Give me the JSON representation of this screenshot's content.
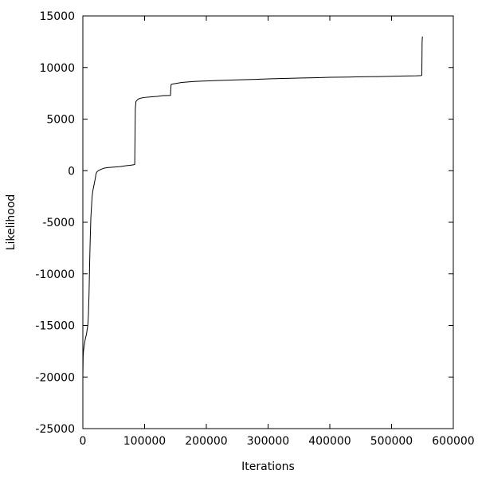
{
  "chart_data": {
    "type": "line",
    "title": "",
    "xlabel": "Iterations",
    "ylabel": "Likelihood",
    "xlim": [
      0,
      600000
    ],
    "ylim": [
      -25000,
      15000
    ],
    "xticks": [
      0,
      100000,
      200000,
      300000,
      400000,
      500000,
      600000
    ],
    "yticks": [
      -25000,
      -20000,
      -15000,
      -10000,
      -5000,
      0,
      5000,
      10000,
      15000
    ],
    "grid": false,
    "legend": "none",
    "series": [
      {
        "color": "#000000",
        "x": [
          0,
          500,
          1000,
          2000,
          4000,
          6000,
          8000,
          9000,
          10000,
          11000,
          12000,
          13000,
          14000,
          15000,
          16000,
          17000,
          18000,
          19000,
          20000,
          21000,
          22000,
          23000,
          25000,
          30000,
          35000,
          40000,
          50000,
          60000,
          70000,
          80000,
          84000,
          84500,
          85000,
          86000,
          88000,
          90000,
          95000,
          100000,
          110000,
          120000,
          130000,
          142000,
          142500,
          143000,
          145000,
          150000,
          160000,
          170000,
          180000,
          200000,
          220000,
          250000,
          280000,
          300000,
          330000,
          350000,
          380000,
          400000,
          430000,
          450000,
          480000,
          500000,
          520000,
          540000,
          548000,
          549000,
          549500,
          550000
        ],
        "y": [
          -20000,
          -18000,
          -17500,
          -17000,
          -16300,
          -15800,
          -15000,
          -14000,
          -12000,
          -9000,
          -6500,
          -4500,
          -3500,
          -2500,
          -2000,
          -1700,
          -1400,
          -1100,
          -800,
          -400,
          -200,
          -100,
          0,
          150,
          250,
          300,
          350,
          400,
          480,
          550,
          600,
          3500,
          6000,
          6700,
          6850,
          6950,
          7050,
          7100,
          7150,
          7200,
          7280,
          7300,
          8000,
          8350,
          8400,
          8450,
          8550,
          8600,
          8650,
          8700,
          8750,
          8800,
          8850,
          8900,
          8950,
          8980,
          9020,
          9050,
          9070,
          9100,
          9120,
          9150,
          9180,
          9200,
          9220,
          9250,
          12500,
          13000
        ]
      }
    ]
  }
}
